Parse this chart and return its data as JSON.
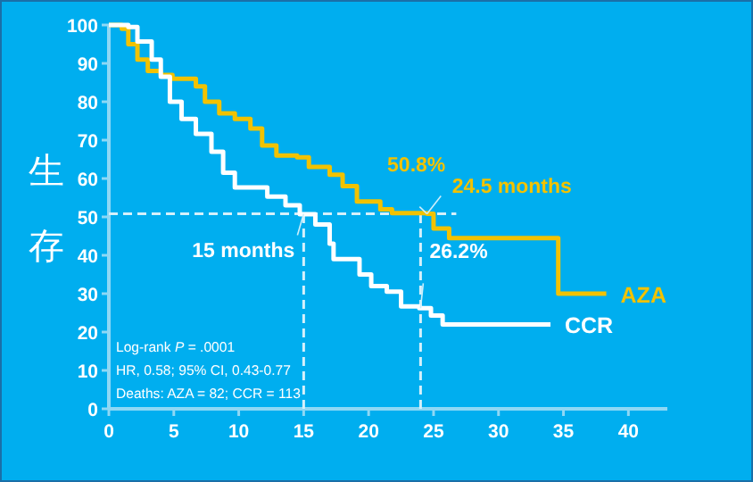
{
  "chart_data": {
    "type": "step",
    "ylabel": "生存",
    "x": [
      0,
      1,
      1.5,
      2.2,
      3,
      4,
      4.9,
      6,
      6.7,
      7.4,
      8.5,
      9.7,
      10.9,
      11.8,
      12.9,
      14.5,
      15.4,
      17,
      18,
      19.1,
      20.9,
      21.8,
      24.5,
      25,
      26.2,
      34.6,
      38.3
    ],
    "series": [
      {
        "name": "AZA",
        "color": "#f2c200",
        "values": [
          100,
          99,
          95,
          91,
          88,
          87,
          86,
          86,
          84,
          80,
          77,
          75.5,
          73,
          68.6,
          66,
          65.5,
          63,
          61,
          58,
          54,
          52,
          51,
          50.8,
          47,
          44.5,
          30,
          30
        ]
      },
      {
        "name": "CCR",
        "color": "#ffffff",
        "x": [
          0,
          1.5,
          2.2,
          3.3,
          4,
          4.7,
          5.6,
          6.7,
          7.9,
          8.8,
          9.7,
          10.9,
          12.2,
          13.6,
          14.7,
          15.9,
          17,
          17.3,
          19.3,
          20.2,
          21.4,
          22.5,
          23.9,
          24.8,
          25.7,
          34
        ],
        "values": [
          100,
          99.5,
          95.7,
          91,
          86.5,
          80,
          75.5,
          71.6,
          67,
          61.5,
          57.7,
          57.7,
          55.3,
          53,
          50.7,
          48,
          43,
          39,
          35,
          32,
          30.5,
          26.7,
          26.2,
          24.3,
          22,
          22
        ]
      }
    ],
    "xlim": [
      0,
      43
    ],
    "ylim": [
      0,
      100
    ],
    "xticks": [
      0,
      5,
      10,
      15,
      20,
      25,
      30,
      35,
      40
    ],
    "yticks": [
      0,
      10,
      20,
      30,
      40,
      50,
      60,
      70,
      80,
      90,
      100
    ],
    "ref_lines": [
      {
        "axis": "y",
        "value": 50.8
      },
      {
        "axis": "x",
        "value": 15
      },
      {
        "axis": "x",
        "value": 24
      }
    ],
    "annotations": [
      {
        "text": "50.8%",
        "x": 24.5,
        "y": 50.8
      },
      {
        "text": "24.5 months",
        "x": 24.5,
        "y": 50.8
      },
      {
        "text": "15 months",
        "x": 15,
        "y": 50.8
      },
      {
        "text": "26.2%",
        "x": 24,
        "y": 26.2
      },
      "Log-rank *P* = .0001",
      "HR, 0.58; 95% CI, 0.43-0.77",
      "Deaths: AZA = 82; CCR = 113"
    ],
    "grid": false,
    "legend": false,
    "marker": "none",
    "line_style": "solid"
  }
}
